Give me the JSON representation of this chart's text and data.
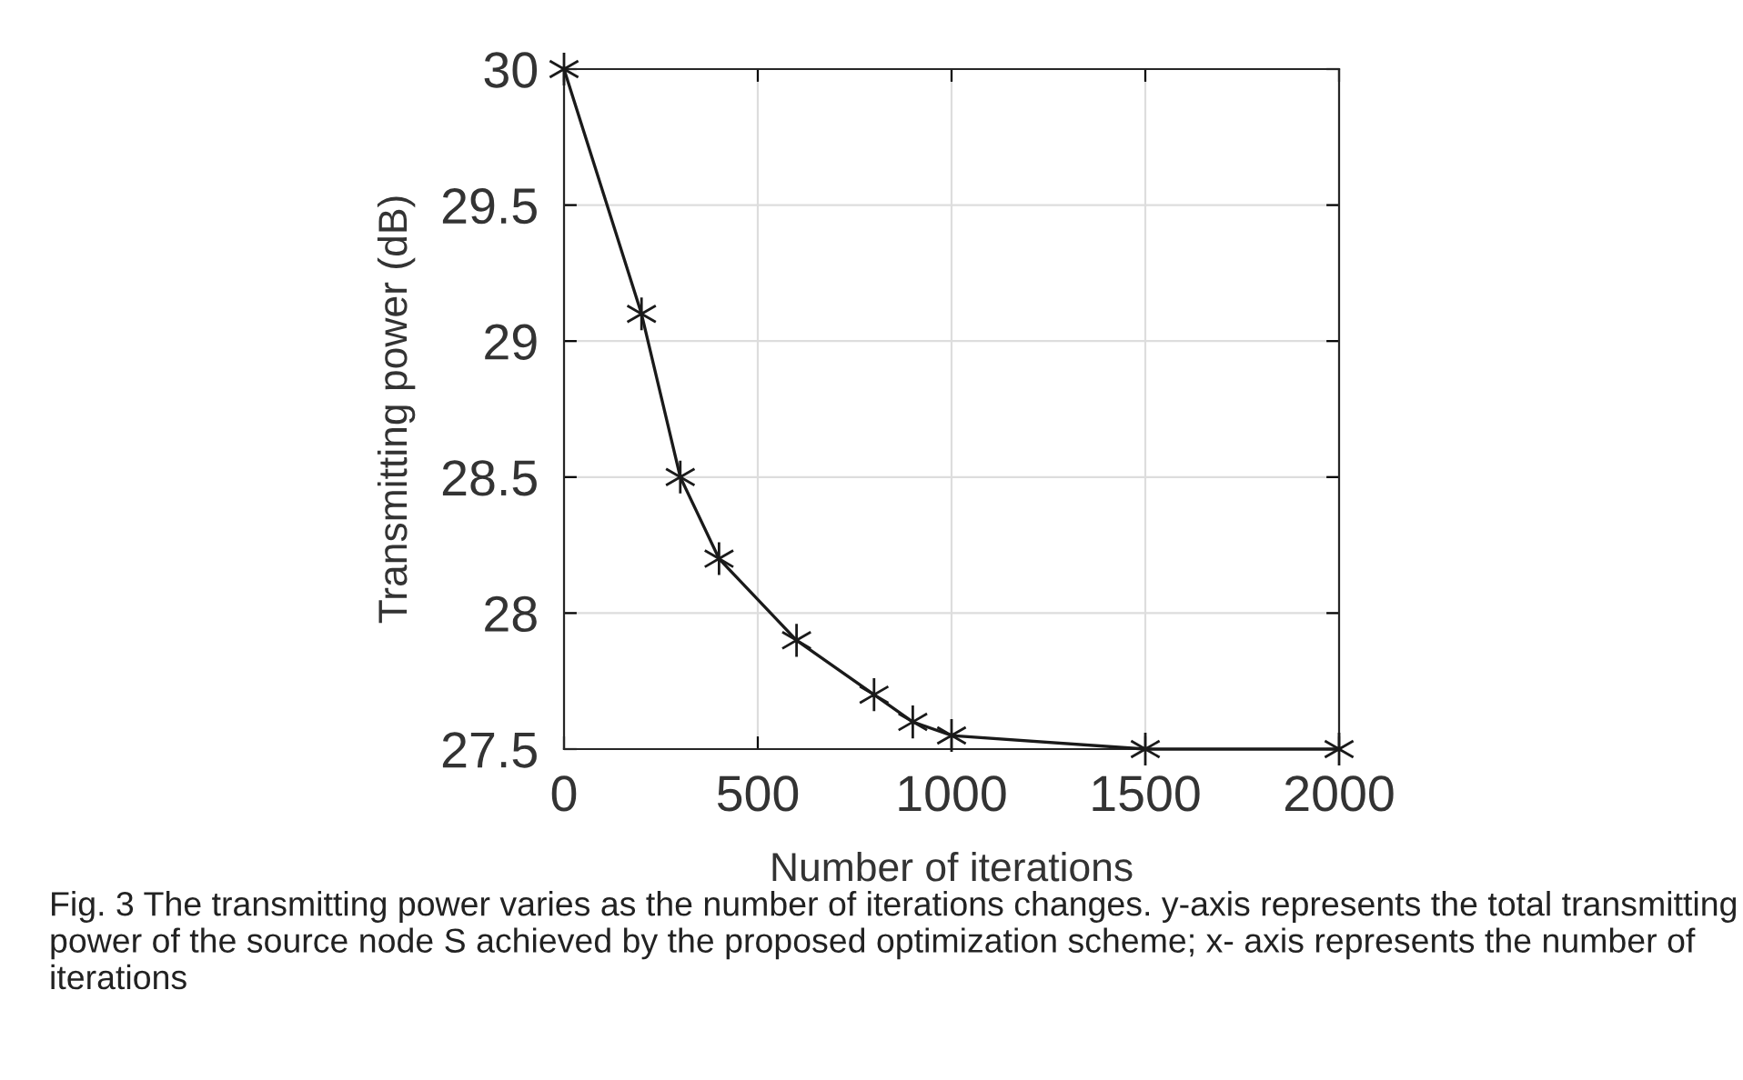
{
  "chart_data": {
    "type": "line",
    "xlabel": "Number of iterations",
    "ylabel": "Transmitting power (dB)",
    "x": [
      0,
      200,
      300,
      400,
      600,
      800,
      900,
      1000,
      1500,
      2000
    ],
    "series": [
      {
        "color": "#1a1a1a",
        "values": [
          30,
          29.1,
          28.5,
          28.2,
          27.9,
          27.7,
          27.6,
          27.55,
          27.5,
          27.5
        ]
      }
    ],
    "xlim": [
      0,
      2000
    ],
    "ylim": [
      27.5,
      30
    ],
    "xticks": [
      0,
      500,
      1000,
      1500,
      2000
    ],
    "yticks": [
      27.5,
      28,
      28.5,
      29,
      29.5,
      30
    ],
    "grid": true,
    "marker": "cross",
    "line_style": "solid",
    "annotations": [
      "Fig. 3 The transmitting power varies as the number of iterations changes. y-axis represents the total transmitting power of the source node S achieved by the proposed optimization scheme; x- axis represents the number of iterations"
    ]
  }
}
